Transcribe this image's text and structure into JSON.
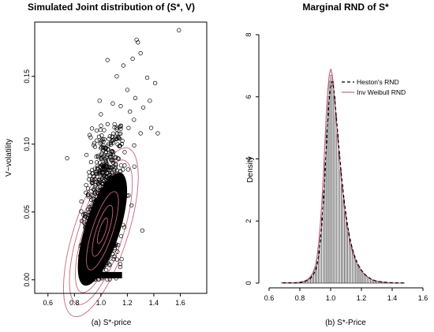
{
  "figure": {
    "left_caption": "(a) S*-price",
    "right_caption": "(b) S*-Price"
  },
  "chart_data": [
    {
      "type": "scatter",
      "title": "Simulated Joint distribution of (S*, V)",
      "xlabel": "",
      "ylabel": "V−volatility",
      "xlim": [
        0.5,
        1.8
      ],
      "ylim": [
        -0.01,
        0.19
      ],
      "x_ticks": [
        0.6,
        0.8,
        1.0,
        1.2,
        1.4,
        1.6
      ],
      "x_tick_labels": [
        "0.6",
        "0.8",
        "1.0",
        "1.2",
        "1.4",
        "1.6"
      ],
      "y_ticks": [
        0.0,
        0.05,
        0.1,
        0.15
      ],
      "y_tick_labels": [
        "0.00",
        "0.05",
        "0.10",
        "0.15"
      ],
      "grid": false,
      "point_marker": "open circle",
      "point_color": "#000000",
      "contour_color": "#c8647d",
      "density_center": [
        1.0,
        0.035
      ],
      "outlier_points": [
        [
          1.59,
          0.184
        ],
        [
          1.27,
          0.177
        ],
        [
          1.28,
          0.175
        ],
        [
          1.3,
          0.167
        ],
        [
          1.24,
          0.163
        ],
        [
          1.05,
          0.162
        ],
        [
          1.17,
          0.158
        ],
        [
          1.35,
          0.149
        ],
        [
          1.41,
          0.145
        ],
        [
          1.12,
          0.15
        ],
        [
          1.2,
          0.14
        ],
        [
          1.26,
          0.134
        ],
        [
          1.37,
          0.132
        ],
        [
          1.32,
          0.127
        ],
        [
          1.09,
          0.13
        ],
        [
          1.0,
          0.122
        ],
        [
          0.99,
          0.132
        ],
        [
          1.43,
          0.108
        ],
        [
          1.38,
          0.112
        ],
        [
          1.3,
          0.108
        ],
        [
          1.25,
          0.118
        ],
        [
          1.15,
          0.128
        ],
        [
          1.22,
          0.124
        ]
      ]
    },
    {
      "type": "bar",
      "title": "Marginal RND of S*",
      "xlabel": "",
      "ylabel": "Density",
      "xlim": [
        0.6,
        1.6
      ],
      "ylim": [
        0,
        8
      ],
      "x_ticks": [
        0.6,
        0.8,
        1.0,
        1.2,
        1.4,
        1.6
      ],
      "x_tick_labels": [
        "0.6",
        "0.8",
        "1.0",
        "1.2",
        "1.4",
        "1.6"
      ],
      "y_ticks": [
        0,
        2,
        4,
        6,
        8
      ],
      "y_tick_labels": [
        "0",
        "2",
        "4",
        "6",
        "8"
      ],
      "grid": false,
      "histogram": {
        "bin_width": 0.01,
        "bin_start": 0.68,
        "values": [
          0.01,
          0.01,
          0.01,
          0.01,
          0.01,
          0.01,
          0.01,
          0.01,
          0.01,
          0.01,
          0.02,
          0.02,
          0.03,
          0.04,
          0.05,
          0.07,
          0.09,
          0.12,
          0.16,
          0.22,
          0.29,
          0.4,
          0.55,
          0.8,
          1.2,
          1.7,
          2.4,
          3.2,
          4.2,
          5.2,
          6.0,
          6.5,
          6.7,
          6.5,
          6.0,
          5.4,
          4.8,
          4.2,
          3.65,
          3.15,
          2.7,
          2.3,
          1.95,
          1.65,
          1.4,
          1.18,
          1.0,
          0.85,
          0.72,
          0.61,
          0.52,
          0.44,
          0.37,
          0.31,
          0.26,
          0.22,
          0.18,
          0.15,
          0.12,
          0.1,
          0.08,
          0.07,
          0.06,
          0.05,
          0.04,
          0.035,
          0.03,
          0.025,
          0.02,
          0.017,
          0.014,
          0.012,
          0.01,
          0.008,
          0.007,
          0.006,
          0.005,
          0.004,
          0.003,
          0.002
        ]
      },
      "series": [
        {
          "name": "Heston's RND",
          "style": "dashed",
          "color": "#000000"
        },
        {
          "name": "Inv Weibull RND",
          "style": "solid",
          "color": "#c8647d"
        }
      ],
      "legend_position": "top-right"
    }
  ]
}
